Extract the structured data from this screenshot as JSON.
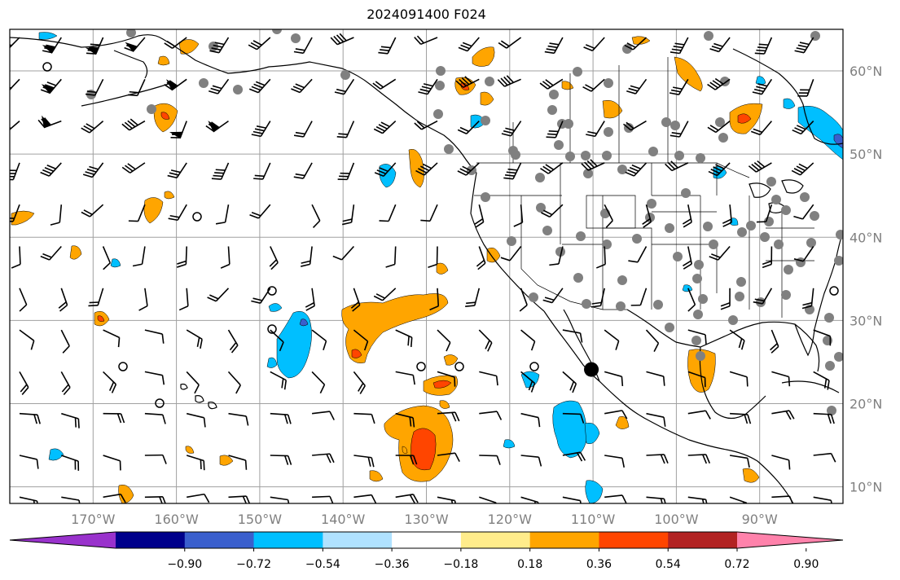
{
  "title": "2024091400 F024",
  "map": {
    "projection": "platecarree",
    "lon_range": [
      -180,
      -80
    ],
    "lat_range": [
      8,
      65
    ],
    "lon_labels": [
      "170°W",
      "160°W",
      "150°W",
      "140°W",
      "130°W",
      "120°W",
      "110°W",
      "100°W",
      "90°W"
    ],
    "lat_labels": [
      "60°N",
      "50°N",
      "40°N",
      "30°N",
      "20°N",
      "10°N"
    ],
    "gridlines": true,
    "fill_colors": {
      "orange": "#ffa500",
      "red_orange": "#ff4500",
      "light_blue": "#00bfff",
      "mid_blue": "#3a5fcd",
      "land_line": "#000000",
      "grid": "#a0a0a0",
      "station_dot": "#808080"
    },
    "marker": {
      "lon": -110.2,
      "lat": 24.1,
      "color": "#000000"
    }
  },
  "colorbar": {
    "colors": [
      "#9932cc",
      "#00008b",
      "#3a5fcd",
      "#00bfff",
      "#b0e2ff",
      "#ffffff",
      "#ffec8b",
      "#ffa500",
      "#ff4500",
      "#b22222",
      "#ff82ab"
    ],
    "tick_labels": [
      "−0.90",
      "−0.72",
      "−0.54",
      "−0.36",
      "−0.18",
      "0.18",
      "0.36",
      "0.54",
      "0.72",
      "0.90"
    ],
    "extend": "both"
  }
}
